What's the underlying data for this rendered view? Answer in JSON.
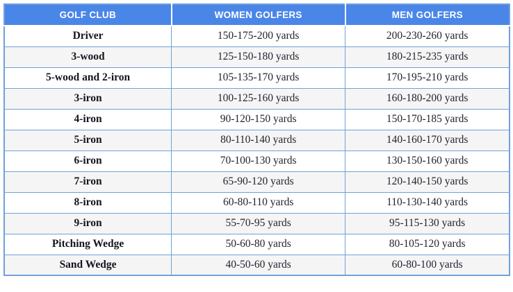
{
  "colors": {
    "header_bg": "#4a86e8",
    "border": "#6fa1d9",
    "alt_row_bg": "#f5f5f5",
    "header_text": "#ffffff",
    "club_text": "#15151f",
    "value_text": "#23232f"
  },
  "table": {
    "columns": [
      {
        "key": "club",
        "label": "GOLF CLUB"
      },
      {
        "key": "women",
        "label": "WOMEN GOLFERS"
      },
      {
        "key": "men",
        "label": "MEN GOLFERS"
      }
    ],
    "rows": [
      {
        "club": "Driver",
        "women": "150-175-200 yards",
        "men": "200-230-260 yards"
      },
      {
        "club": "3-wood",
        "women": "125-150-180 yards",
        "men": "180-215-235 yards"
      },
      {
        "club": "5-wood and 2-iron",
        "women": "105-135-170 yards",
        "men": "170-195-210 yards"
      },
      {
        "club": "3-iron",
        "women": "100-125-160 yards",
        "men": "160-180-200 yards"
      },
      {
        "club": "4-iron",
        "women": "90-120-150 yards",
        "men": "150-170-185 yards"
      },
      {
        "club": "5-iron",
        "women": "80-110-140 yards",
        "men": "140-160-170 yards"
      },
      {
        "club": "6-iron",
        "women": "70-100-130 yards",
        "men": "130-150-160 yards"
      },
      {
        "club": "7-iron",
        "women": "65-90-120 yards",
        "men": "120-140-150 yards"
      },
      {
        "club": "8-iron",
        "women": "60-80-110 yards",
        "men": "110-130-140 yards"
      },
      {
        "club": "9-iron",
        "women": "55-70-95 yards",
        "men": "95-115-130 yards"
      },
      {
        "club": "Pitching Wedge",
        "women": "50-60-80 yards",
        "men": "80-105-120 yards"
      },
      {
        "club": "Sand Wedge",
        "women": "40-50-60 yards",
        "men": "60-80-100 yards"
      }
    ]
  }
}
